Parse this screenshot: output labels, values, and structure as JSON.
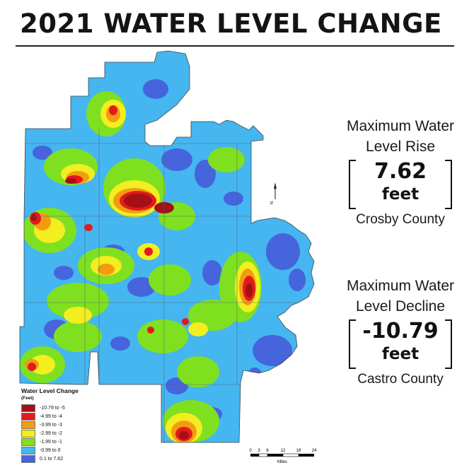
{
  "title": "2021 WATER LEVEL CHANGE",
  "rise": {
    "label_line1": "Maximum Water",
    "label_line2": "Level Rise",
    "value": "7.62",
    "unit": "feet",
    "county": "Crosby County"
  },
  "decline": {
    "label_line1": "Maximum Water",
    "label_line2": "Level Decline",
    "value": "-10.79",
    "unit": "feet",
    "county": "Castro County"
  },
  "legend": {
    "title": "Water Level Change",
    "subtitle": "(Feet)",
    "classes": [
      {
        "label": "-10.79 to -5",
        "color": "#a50f15"
      },
      {
        "label": "-4.99 to -4",
        "color": "#e31a1c"
      },
      {
        "label": "-3.99 to -3",
        "color": "#f39c12"
      },
      {
        "label": "-2.99 to -2",
        "color": "#f2ee20"
      },
      {
        "label": "-1.99 to -1",
        "color": "#7fe020"
      },
      {
        "label": "-0.99 to 0",
        "color": "#45b6f0"
      },
      {
        "label": "0.1 to 7.62",
        "color": "#4664dc"
      }
    ]
  },
  "north_label": "N",
  "scale": {
    "ticks": [
      "0",
      "3",
      "6",
      "12",
      "18",
      "24"
    ],
    "unit": "Miles"
  }
}
